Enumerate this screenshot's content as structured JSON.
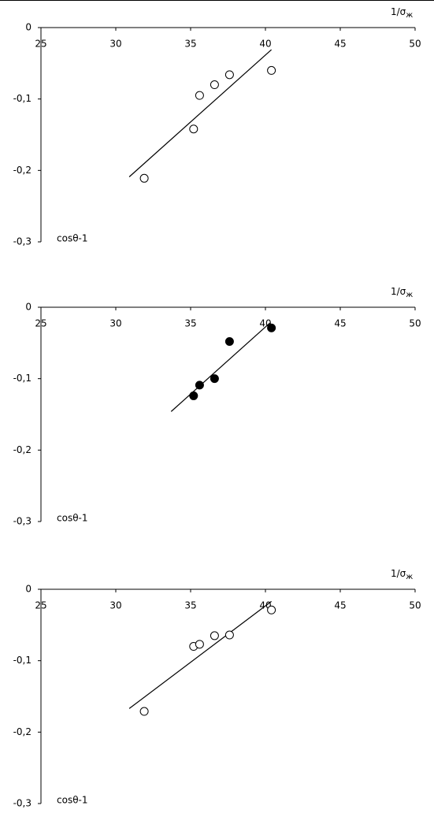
{
  "chart_data": [
    {
      "type": "scatter",
      "x_label": "1/σ",
      "x_label_subscript": "ж",
      "y_label": "cosθ-1",
      "xlim": [
        25,
        50
      ],
      "ylim": [
        -0.3,
        0
      ],
      "xticks": [
        25,
        30,
        35,
        40,
        45,
        50
      ],
      "yticks": [
        0,
        {
          "value": -0.1,
          "label": "-0,1"
        },
        {
          "value": -0.2,
          "label": "-0,2"
        },
        {
          "value": -0.3,
          "label": "-0,3"
        }
      ],
      "series": [
        {
          "color": "#000000",
          "filled": false,
          "x": [
            31.9,
            35.2,
            35.6,
            36.6,
            37.6,
            40.4
          ],
          "values": [
            -0.211,
            -0.142,
            -0.095,
            -0.08,
            -0.066,
            -0.06
          ]
        }
      ],
      "trendline": {
        "x": [
          30.9,
          40.4
        ],
        "values": [
          -0.209,
          -0.031
        ]
      }
    },
    {
      "type": "scatter",
      "x_label": "1/σ",
      "x_label_subscript": "ж",
      "y_label": "cosθ-1",
      "xlim": [
        25,
        50
      ],
      "ylim": [
        -0.3,
        0
      ],
      "xticks": [
        25,
        30,
        35,
        40,
        45,
        50
      ],
      "yticks": [
        0,
        {
          "value": -0.1,
          "label": "-0,1"
        },
        {
          "value": -0.2,
          "label": "-0,2"
        },
        {
          "value": -0.3,
          "label": "-0,3"
        }
      ],
      "series": [
        {
          "color": "#000000",
          "filled": true,
          "x": [
            35.2,
            35.6,
            36.6,
            37.6,
            40.4
          ],
          "values": [
            -0.124,
            -0.109,
            -0.1,
            -0.048,
            -0.029
          ]
        }
      ],
      "trendline": {
        "x": [
          33.7,
          40.3
        ],
        "values": [
          -0.146,
          -0.022
        ]
      }
    },
    {
      "type": "scatter",
      "x_label": "1/σ",
      "x_label_subscript": "ж",
      "y_label": "cosθ-1",
      "xlim": [
        25,
        50
      ],
      "ylim": [
        -0.3,
        0
      ],
      "xticks": [
        25,
        30,
        35,
        40,
        45,
        50
      ],
      "yticks": [
        0,
        {
          "value": -0.1,
          "label": "-0,1"
        },
        {
          "value": -0.2,
          "label": "-0,2"
        },
        {
          "value": -0.3,
          "label": "-0,3"
        }
      ],
      "series": [
        {
          "color": "#000000",
          "filled": false,
          "x": [
            31.9,
            35.2,
            35.6,
            36.6,
            37.6,
            40.4
          ],
          "values": [
            -0.171,
            -0.08,
            -0.077,
            -0.065,
            -0.064,
            -0.029
          ]
        }
      ],
      "trendline": {
        "x": [
          30.9,
          40.4
        ],
        "values": [
          -0.167,
          -0.017
        ]
      }
    }
  ]
}
